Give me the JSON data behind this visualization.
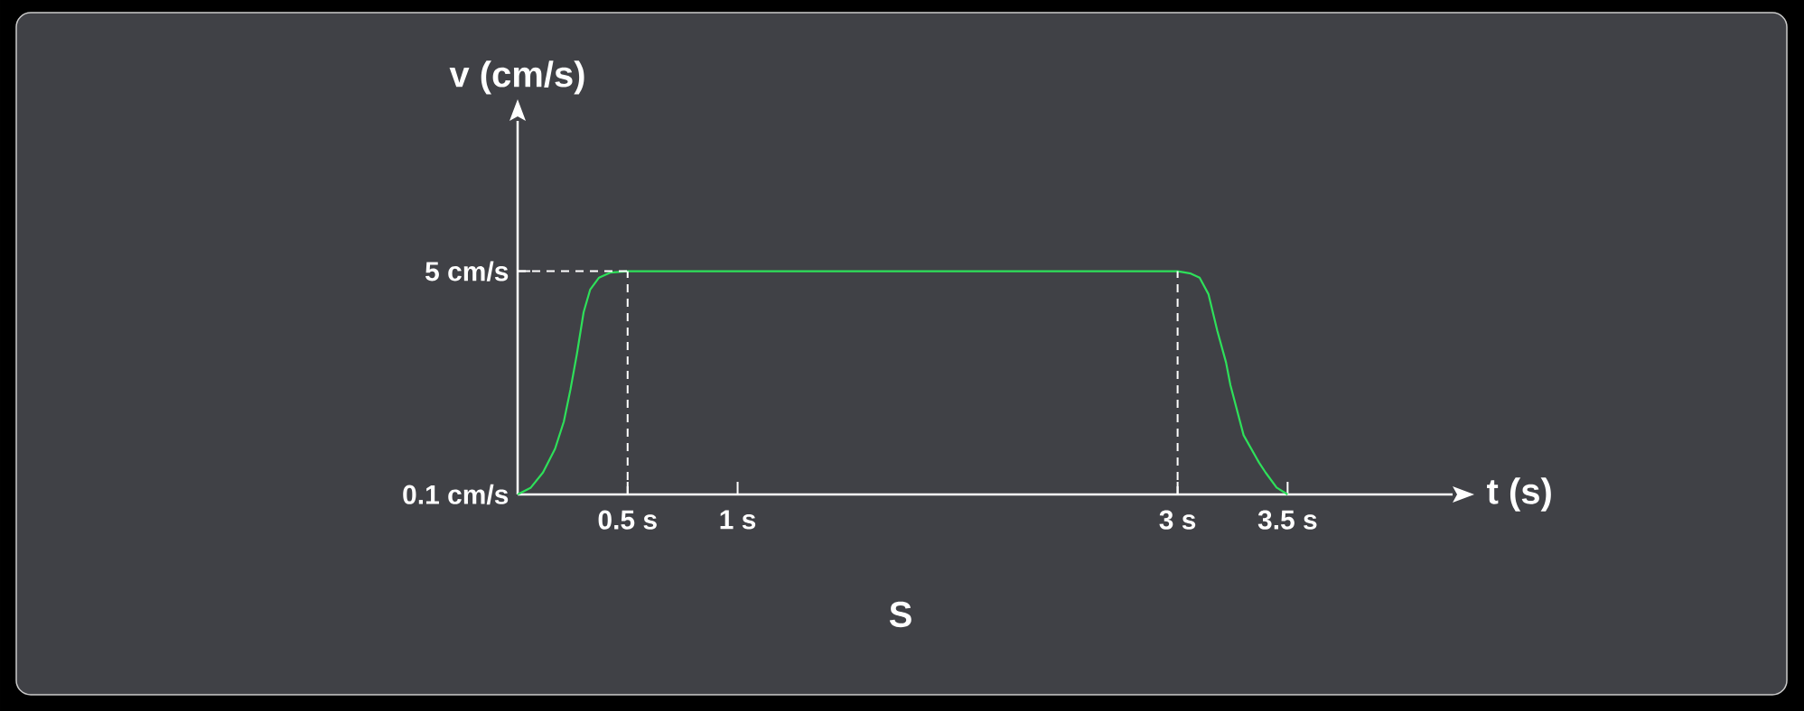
{
  "chart_data": {
    "type": "line",
    "xlabel": "t (s)",
    "ylabel": "v (cm/s)",
    "annotations": [
      "S"
    ],
    "xlim": [
      0,
      4.25
    ],
    "ylim": [
      0.1,
      8.3
    ],
    "xticks": [
      {
        "value": 0.5,
        "label": "0.5 s"
      },
      {
        "value": 1,
        "label": "1 s"
      },
      {
        "value": 3,
        "label": "3 s"
      },
      {
        "value": 3.5,
        "label": "3.5 s"
      }
    ],
    "yticks": [
      {
        "value": 0.1,
        "label": "0.1 cm/s"
      },
      {
        "value": 5,
        "label": "5 cm/s"
      }
    ],
    "ref_lines": [
      {
        "axis": "y",
        "value": 5,
        "line_style": "dashed",
        "color": "#ffffff"
      },
      {
        "axis": "x",
        "value": 0.5,
        "line_style": "dashed",
        "color": "#ffffff"
      },
      {
        "axis": "x",
        "value": 3,
        "line_style": "dashed",
        "color": "#ffffff"
      }
    ],
    "grid": false,
    "line_style": "solid",
    "series": [
      {
        "color": "#2ee05a",
        "x": [
          0,
          0.06,
          0.115,
          0.17,
          0.21,
          0.24,
          0.27,
          0.3,
          0.33,
          0.37,
          0.42,
          0.5,
          3,
          3.06,
          3.1,
          3.14,
          3.18,
          3.22,
          3.24,
          3.3,
          3.37,
          3.4,
          3.45,
          3.5
        ],
        "values": [
          0.1,
          0.25,
          0.58,
          1.1,
          1.7,
          2.4,
          3.2,
          4.1,
          4.6,
          4.86,
          4.97,
          5,
          5,
          4.95,
          4.86,
          4.5,
          3.7,
          3.0,
          2.5,
          1.4,
          0.8,
          0.58,
          0.25,
          0.1
        ]
      }
    ]
  }
}
